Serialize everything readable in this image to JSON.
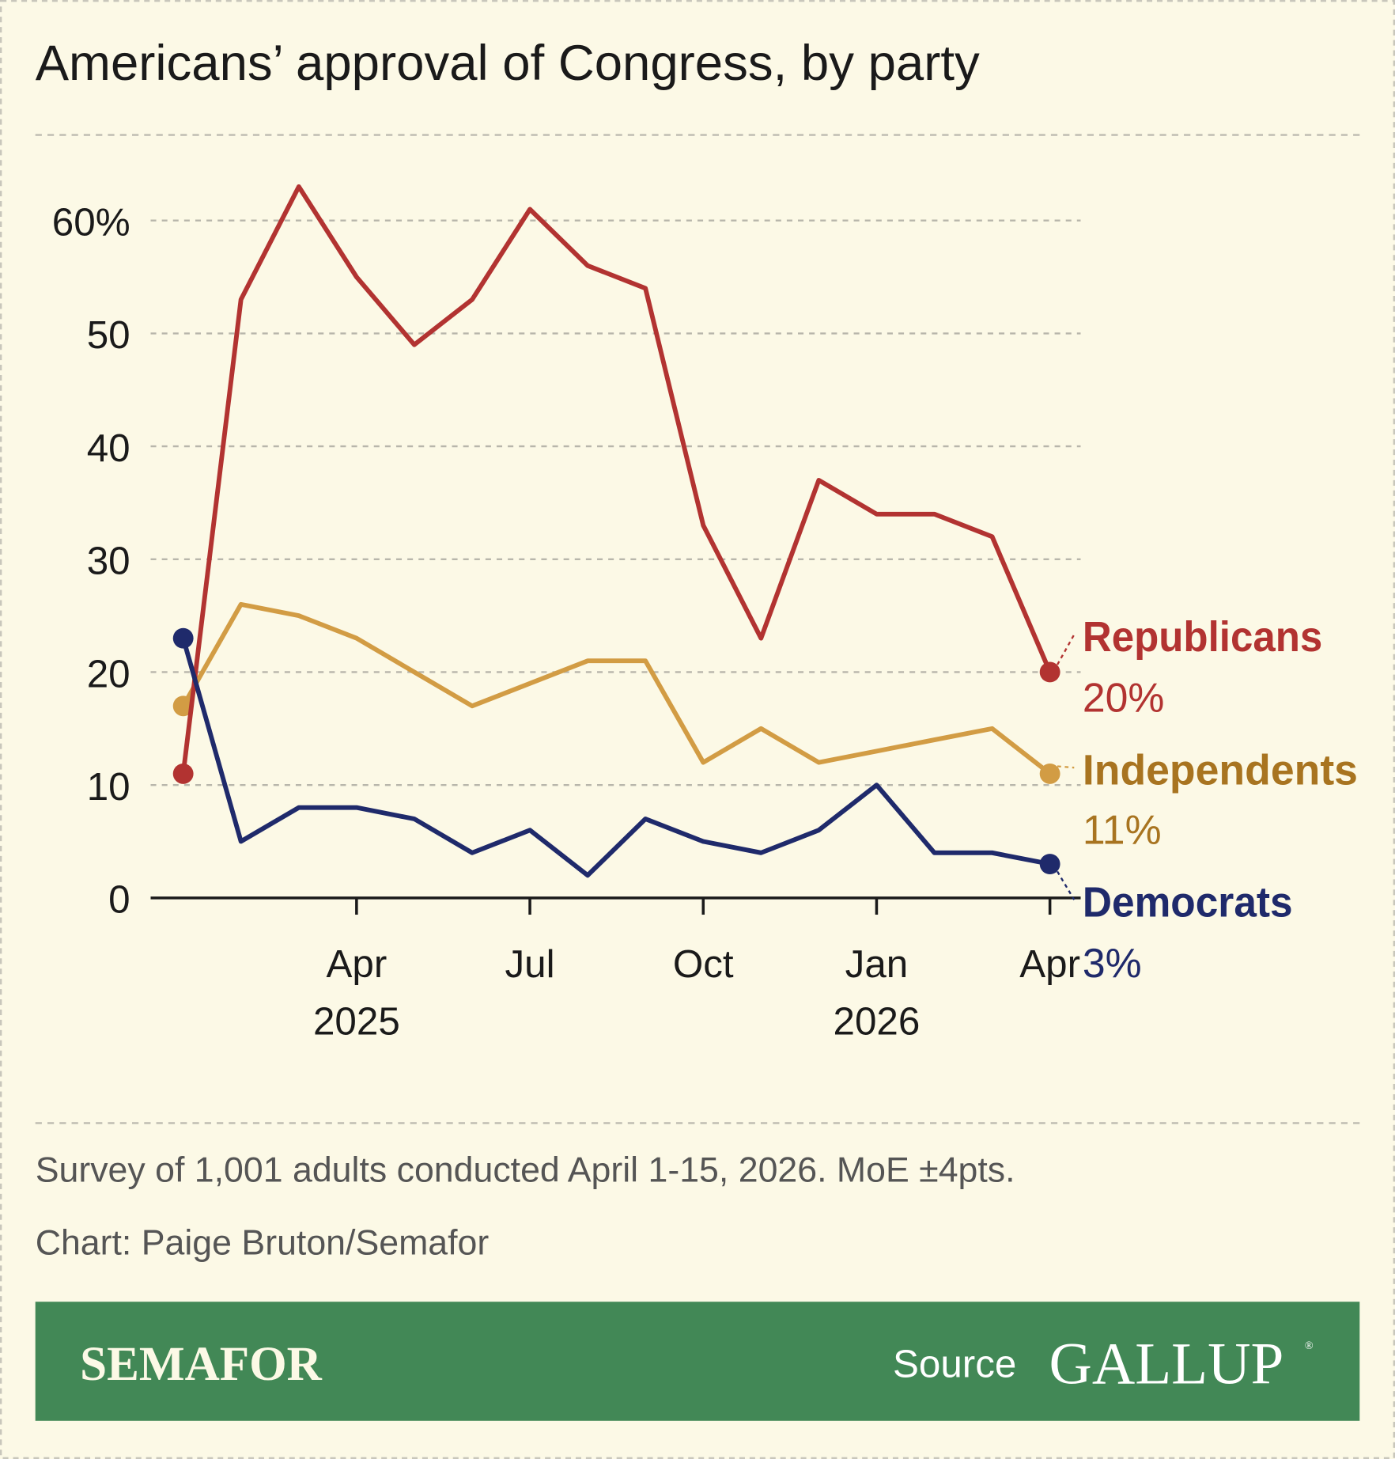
{
  "title": "Americans’ approval of Congress, by party",
  "note": "Survey of 1,001 adults conducted April 1-15, 2026. MoE ±4pts.",
  "credit": "Chart: Paige Bruton/Semafor",
  "footer": {
    "brand": "SEMAFOR",
    "source_label": "Source",
    "source_logo": "GALLUP",
    "registered": "®"
  },
  "colors": {
    "background": "#fcf9e6",
    "republicans": "#b23331",
    "independents": "#d29c44",
    "independents_label": "#a87420",
    "democrats": "#1f2a6b",
    "footer": "#428856"
  },
  "chart_data": {
    "type": "line",
    "title": "Americans’ approval of Congress, by party",
    "x": [
      "Jan 2025",
      "Feb 2025",
      "Mar 2025",
      "Apr 2025",
      "May 2025",
      "Jun 2025",
      "Jul 2025",
      "Aug 2025",
      "Sep 2025",
      "Oct 2025",
      "Nov 2025",
      "Dec 2025",
      "Jan 2026",
      "Feb 2026",
      "Mar 2026",
      "Apr 2026"
    ],
    "ylim": [
      0,
      60
    ],
    "yticks": [
      0,
      10,
      20,
      30,
      40,
      50,
      60
    ],
    "ytick_labels": [
      "0",
      "10",
      "20",
      "30",
      "40",
      "50",
      "60%"
    ],
    "xticks": [
      {
        "index": 3,
        "label": "Apr",
        "year": "2025"
      },
      {
        "index": 6,
        "label": "Jul",
        "year": ""
      },
      {
        "index": 9,
        "label": "Oct",
        "year": ""
      },
      {
        "index": 12,
        "label": "Jan",
        "year": "2026"
      },
      {
        "index": 15,
        "label": "Apr",
        "year": ""
      }
    ],
    "grid": true,
    "series": [
      {
        "name": "Republicans",
        "end_label": "20%",
        "color": "#b23331",
        "label_color": "#b23331",
        "values": [
          11,
          53,
          63,
          55,
          49,
          53,
          61,
          56,
          54,
          33,
          23,
          37,
          34,
          34,
          32,
          20
        ]
      },
      {
        "name": "Independents",
        "end_label": "11%",
        "color": "#d29c44",
        "label_color": "#a87420",
        "values": [
          17,
          26,
          25,
          23,
          20,
          17,
          19,
          21,
          21,
          12,
          15,
          12,
          13,
          14,
          15,
          11
        ]
      },
      {
        "name": "Democrats",
        "end_label": "3%",
        "color": "#1f2a6b",
        "label_color": "#1f2a6b",
        "values": [
          23,
          5,
          8,
          8,
          7,
          4,
          6,
          2,
          7,
          5,
          4,
          6,
          10,
          4,
          4,
          3
        ]
      }
    ]
  }
}
